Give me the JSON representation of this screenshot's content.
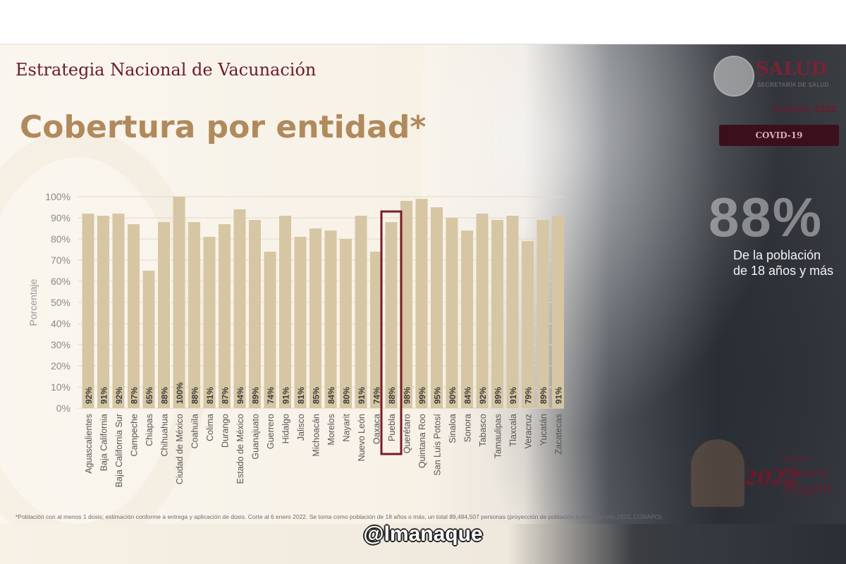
{
  "header": {
    "strategy_title": "Estrategia Nacional de Vacunación",
    "main_title": "Cobertura por entidad*"
  },
  "logo": {
    "name": "SALUD",
    "subtitle": "SECRETARÍA DE SALUD"
  },
  "date": "6 enero, 2022",
  "badge": "COVID-19",
  "coverage": {
    "value": "88%",
    "line1": "De la población",
    "line2": "de 18 años y más"
  },
  "anniversary": {
    "year": "2022",
    "small": "Ricardo",
    "name_line1": "Flores",
    "name_line2": "Magón"
  },
  "footnote": "*Población con al menos 1 dosis; estimación conforme a entrega y aplicación de dosis. Corte al 6 enero 2022. Se toma como población de 18 años o más, un total 89,484,507 personas (proyección de población a mitad de año 2022, CONAPO).",
  "watermark": "@lmanaque",
  "colors": {
    "bar": "#d6c6a3",
    "highlight": "#7a1a26",
    "title_gold": "#b08a5c",
    "brand": "#6b1a2c"
  },
  "chart_data": {
    "type": "bar",
    "ylabel": "Porcentaje",
    "ylim": [
      0,
      100
    ],
    "yticks": [
      "0%",
      "10%",
      "20%",
      "30%",
      "40%",
      "50%",
      "60%",
      "70%",
      "80%",
      "90%",
      "100%"
    ],
    "grid": true,
    "highlighted": "Puebla",
    "categories": [
      "Aguascalientes",
      "Baja California",
      "Baja California Sur",
      "Campeche",
      "Chiapas",
      "Chihuahua",
      "Ciudad de México",
      "Coahuila",
      "Colima",
      "Durango",
      "Estado de México",
      "Guanajuato",
      "Guerrero",
      "Hidalgo",
      "Jalisco",
      "Michoacán",
      "Morelos",
      "Nayarit",
      "Nuevo León",
      "Oaxaca",
      "Puebla",
      "Querétaro",
      "Quintana Roo",
      "San Luis Potosí",
      "Sinaloa",
      "Sonora",
      "Tabasco",
      "Tamaulipas",
      "Tlaxcala",
      "Veracruz",
      "Yucatán",
      "Zacatecas"
    ],
    "values": [
      92,
      91,
      92,
      87,
      65,
      88,
      100,
      88,
      81,
      87,
      94,
      89,
      74,
      91,
      81,
      85,
      84,
      80,
      91,
      74,
      88,
      98,
      99,
      95,
      90,
      84,
      92,
      89,
      91,
      79,
      89,
      91
    ],
    "labels": [
      "92%",
      "91%",
      "92%",
      "87%",
      "65%",
      "88%",
      "100%",
      "88%",
      "81%",
      "87%",
      "94%",
      "89%",
      "74%",
      "91%",
      "81%",
      "85%",
      "84%",
      "80%",
      "91%",
      "74%",
      "88%",
      "98%",
      "99%",
      "95%",
      "90%",
      "84%",
      "92%",
      "89%",
      "91%",
      "79%",
      "89%",
      "91%"
    ]
  }
}
